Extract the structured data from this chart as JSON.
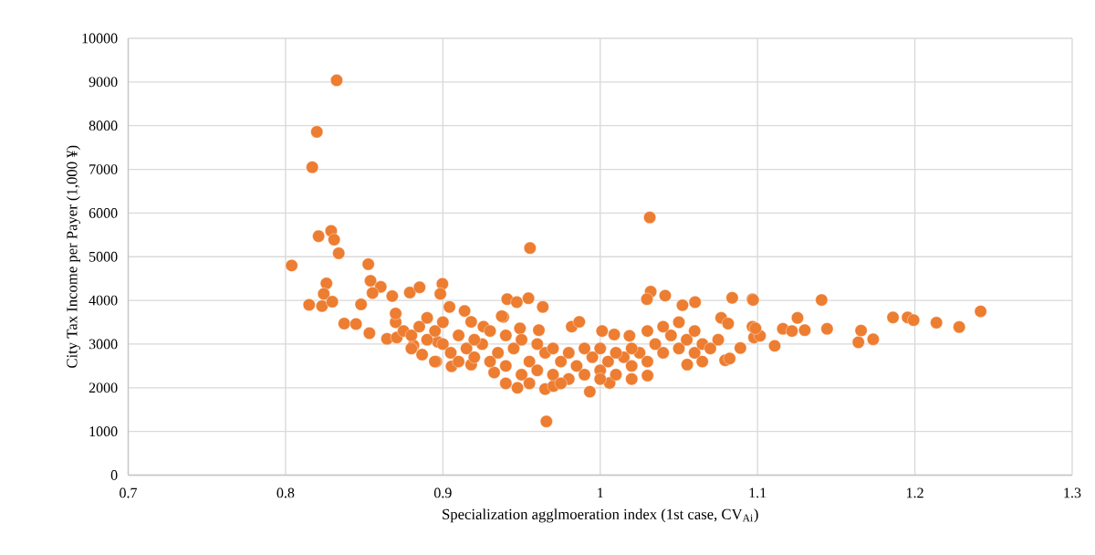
{
  "chart_data": {
    "type": "scatter",
    "xlabel": "Specialization agglmoeration index (1st case, CV$_{Ai}$)",
    "ylabel": "City Tax Income per Payer (1,000 ¥)",
    "xlim": [
      0.7,
      1.3
    ],
    "ylim": [
      0,
      10000
    ],
    "xticks": [
      0.7,
      0.8,
      0.9,
      {
        "value": 1.0,
        "label": "1"
      },
      1.1,
      1.2,
      1.3
    ],
    "yticks": [
      0,
      1000,
      2000,
      3000,
      4000,
      5000,
      6000,
      7000,
      8000,
      9000,
      10000
    ],
    "grid": true,
    "marker": "circle",
    "series": [
      {
        "color": "#ed7d31",
        "x": [
          0.8325,
          0.8199,
          0.817,
          0.829,
          0.821,
          0.8309,
          0.8338,
          0.8039,
          0.8526,
          0.826,
          0.854,
          0.8605,
          0.8243,
          0.815,
          0.8232,
          0.8297,
          0.848,
          0.8553,
          0.8678,
          0.879,
          0.8852,
          0.8373,
          0.8448,
          0.8533,
          0.8645,
          0.8707,
          0.8813,
          0.8868,
          0.8958,
          0.8997,
          0.8984,
          0.9554,
          1.0315,
          0.9658,
          0.9409,
          0.947,
          0.9544,
          0.9635,
          0.9138,
          0.9042,
          0.9384,
          0.961,
          1.0321,
          1.0297,
          1.0413,
          1.0603,
          1.0523,
          1.0839,
          1.0968,
          1.0769,
          1.0813,
          0.9934,
          0.9474,
          0.965,
          0.9703,
          1.006,
          1.0301,
          0.9326,
          0.918,
          0.9055,
          0.8949,
          0.9819,
          0.9867,
          1.0012,
          1.0089,
          1.0186,
          1.0553,
          1.0649,
          1.0794,
          1.0891,
          1.0968,
          1.0978,
          0.918,
          0.9258,
          0.9374,
          0.949,
          0.8968,
          1.0972,
          1.1407,
          1.1254,
          1.1161,
          1.1219,
          1.13,
          1.1442,
          1.1109,
          1.1016,
          1.0987,
          1.1658,
          1.1641,
          1.1735,
          1.1861,
          1.1954,
          1.1992,
          1.2137,
          1.2282,
          1.2418,
          1.0823,
          0.87,
          0.875,
          0.88,
          0.885,
          0.89,
          0.895,
          0.9,
          0.905,
          0.91,
          0.915,
          0.92,
          0.925,
          0.93,
          0.935,
          0.94,
          0.945,
          0.95,
          0.955,
          0.96,
          0.965,
          0.97,
          0.975,
          0.98,
          0.985,
          0.99,
          0.995,
          1.0,
          1.005,
          1.01,
          1.015,
          1.02,
          1.025,
          1.03,
          1.035,
          1.04,
          1.045,
          1.05,
          1.055,
          1.06,
          1.065,
          1.07,
          1.075,
          0.96,
          0.97,
          0.98,
          0.99,
          1.0,
          1.01,
          1.02,
          0.95,
          0.94,
          0.93,
          0.92,
          0.91,
          0.9,
          0.89,
          0.88,
          0.87,
          1.04,
          1.05,
          1.03,
          1.06,
          0.955,
          0.975,
          1.0,
          1.02,
          0.94
        ],
        "values": [
          9040,
          7860,
          7050,
          5590,
          5470,
          5390,
          5080,
          4800,
          4830,
          4390,
          4450,
          4310,
          4150,
          3900,
          3870,
          3970,
          3910,
          4170,
          4100,
          4180,
          4300,
          3470,
          3460,
          3250,
          3120,
          3150,
          2970,
          2760,
          2600,
          4380,
          4150,
          5200,
          5900,
          1230,
          4030,
          3960,
          4050,
          3850,
          3760,
          3850,
          3620,
          3320,
          4200,
          4030,
          4110,
          3960,
          3890,
          4060,
          4030,
          3600,
          3470,
          1910,
          2000,
          1970,
          2040,
          2110,
          2280,
          2350,
          2530,
          2490,
          2600,
          3400,
          3510,
          3300,
          3220,
          3190,
          2530,
          2600,
          2630,
          2910,
          3400,
          3150,
          3510,
          3400,
          3640,
          3360,
          3050,
          4010,
          4010,
          3600,
          3350,
          3300,
          3320,
          3350,
          2960,
          3190,
          3360,
          3310,
          3040,
          3110,
          3610,
          3610,
          3550,
          3490,
          3390,
          3750,
          2670,
          3500,
          3300,
          3200,
          3400,
          3100,
          3300,
          3000,
          2800,
          3200,
          2900,
          2700,
          3000,
          2600,
          2800,
          2500,
          2900,
          2300,
          2600,
          2400,
          2800,
          2300,
          2600,
          2200,
          2500,
          2300,
          2700,
          2400,
          2600,
          2300,
          2700,
          2500,
          2800,
          2600,
          3000,
          2800,
          3200,
          2900,
          3100,
          2800,
          3000,
          2900,
          3100,
          3000,
          2900,
          2800,
          2900,
          2900,
          2800,
          2900,
          3100,
          3200,
          3300,
          3100,
          2600,
          3500,
          3600,
          2900,
          3700,
          3400,
          3500,
          3300,
          3300,
          2100,
          2100,
          2200,
          2200,
          2100
        ]
      }
    ]
  }
}
